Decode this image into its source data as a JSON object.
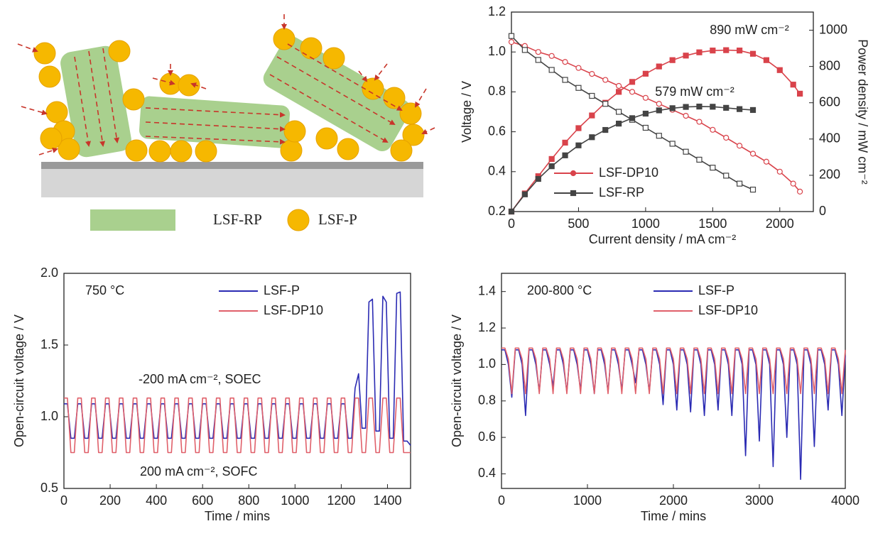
{
  "diagram": {
    "legend": [
      "LSF-RP",
      "LSF-P"
    ]
  },
  "chart_data": [
    {
      "type": "line",
      "x_label": "Current density / mA cm⁻²",
      "y_label": "Voltage / V",
      "y2_label": "Power density / mW cm⁻²",
      "xlim": [
        0,
        2250
      ],
      "xticks": [
        0,
        500,
        1000,
        1500,
        2000
      ],
      "ylim": [
        0.2,
        1.2
      ],
      "yticks": [
        0.2,
        0.4,
        0.6,
        0.8,
        {
          "value": 1,
          "label": "1.0"
        },
        1.2
      ],
      "y2lim": [
        0,
        1100
      ],
      "y2ticks": [
        0,
        200,
        400,
        600,
        800,
        1000
      ],
      "legend": "lower left",
      "annotations": [
        "890 mW cm⁻²",
        "579 mW cm⁻²"
      ],
      "series": [
        {
          "name": "LSF-DP10",
          "color": "#d9434b",
          "marker": "open-circle",
          "x": [
            0,
            100,
            200,
            300,
            400,
            500,
            600,
            700,
            800,
            900,
            1000,
            1100,
            1200,
            1300,
            1400,
            1500,
            1600,
            1700,
            1800,
            1900,
            2000,
            2100,
            2150
          ],
          "values": [
            1.05,
            1.03,
            1.0,
            0.98,
            0.95,
            0.92,
            0.89,
            0.86,
            0.83,
            0.8,
            0.77,
            0.74,
            0.71,
            0.68,
            0.65,
            0.61,
            0.57,
            0.53,
            0.49,
            0.45,
            0.4,
            0.34,
            0.3
          ]
        },
        {
          "color": "#d9434b",
          "marker": "square",
          "axis": "y2",
          "x": [
            0,
            100,
            200,
            300,
            400,
            500,
            600,
            700,
            800,
            900,
            1000,
            1100,
            1200,
            1300,
            1400,
            1500,
            1600,
            1700,
            1800,
            1900,
            2000,
            2100,
            2150
          ],
          "values": [
            0,
            100,
            195,
            290,
            380,
            460,
            530,
            600,
            660,
            715,
            760,
            800,
            835,
            860,
            878,
            888,
            890,
            888,
            870,
            835,
            780,
            700,
            650
          ]
        },
        {
          "name": "LSF-RP",
          "color": "#444444",
          "marker": "open-square",
          "x": [
            0,
            100,
            200,
            300,
            400,
            500,
            600,
            700,
            800,
            900,
            1000,
            1100,
            1200,
            1300,
            1400,
            1500,
            1600,
            1700,
            1800
          ],
          "values": [
            1.08,
            1.01,
            0.96,
            0.91,
            0.86,
            0.82,
            0.78,
            0.74,
            0.7,
            0.66,
            0.62,
            0.58,
            0.54,
            0.5,
            0.46,
            0.42,
            0.38,
            0.34,
            0.31
          ]
        },
        {
          "color": "#444444",
          "marker": "square",
          "axis": "y2",
          "x": [
            0,
            100,
            200,
            300,
            400,
            500,
            600,
            700,
            800,
            900,
            1000,
            1100,
            1200,
            1300,
            1400,
            1500,
            1600,
            1700,
            1800
          ],
          "values": [
            0,
            95,
            180,
            250,
            310,
            365,
            410,
            450,
            485,
            515,
            540,
            558,
            570,
            577,
            579,
            578,
            572,
            565,
            560
          ]
        }
      ]
    },
    {
      "type": "line",
      "x_label": "Time / mins",
      "y_label": "Open-circuit voltage / V",
      "xlim": [
        0,
        1500
      ],
      "xticks": [
        0,
        200,
        400,
        600,
        800,
        1000,
        1200,
        1400
      ],
      "ylim": [
        0.5,
        2.0
      ],
      "yticks": [
        0.5,
        {
          "value": 1,
          "label": "1.0"
        },
        1.5,
        {
          "value": 2,
          "label": "2.0"
        }
      ],
      "legend": "upper right",
      "annotations": [
        "750 °C",
        "-200 mA cm⁻², SOEC",
        "200 mA cm⁻², SOFC"
      ],
      "x": [
        0,
        15,
        30,
        45,
        60,
        75,
        90,
        105,
        120,
        135,
        150,
        165,
        180,
        195,
        210,
        225,
        240,
        255,
        270,
        285,
        300,
        315,
        330,
        345,
        360,
        375,
        390,
        405,
        420,
        435,
        450,
        465,
        480,
        495,
        510,
        525,
        540,
        555,
        570,
        585,
        600,
        615,
        630,
        645,
        660,
        675,
        690,
        705,
        720,
        735,
        750,
        765,
        780,
        795,
        810,
        825,
        840,
        855,
        870,
        885,
        900,
        915,
        930,
        945,
        960,
        975,
        990,
        1005,
        1020,
        1035,
        1050,
        1065,
        1080,
        1095,
        1110,
        1125,
        1140,
        1155,
        1170,
        1185,
        1200,
        1215,
        1230,
        1245,
        1260,
        1275,
        1290,
        1305,
        1320,
        1335,
        1350,
        1365,
        1380,
        1395,
        1410,
        1425,
        1440,
        1455,
        1470,
        1485,
        1500
      ],
      "series": [
        {
          "name": "LSF-P",
          "color": "#2b2bb3",
          "values": [
            1.09,
            1.09,
            0.85,
            0.85,
            1.09,
            1.09,
            0.85,
            0.85,
            1.09,
            1.09,
            0.85,
            0.85,
            1.09,
            1.09,
            0.85,
            0.85,
            1.09,
            1.09,
            0.85,
            0.85,
            1.09,
            1.09,
            0.85,
            0.85,
            1.09,
            1.09,
            0.85,
            0.85,
            1.09,
            1.09,
            0.85,
            0.85,
            1.09,
            1.09,
            0.85,
            0.85,
            1.09,
            1.09,
            0.85,
            0.85,
            1.09,
            1.09,
            0.85,
            0.85,
            1.09,
            1.09,
            0.85,
            0.85,
            1.09,
            1.09,
            0.85,
            0.85,
            1.09,
            1.09,
            0.85,
            0.85,
            1.09,
            1.09,
            0.85,
            0.85,
            1.09,
            1.09,
            0.85,
            0.85,
            1.09,
            1.09,
            0.85,
            0.85,
            1.09,
            1.09,
            0.85,
            0.85,
            1.09,
            1.09,
            0.85,
            0.85,
            1.09,
            1.09,
            0.85,
            0.85,
            1.09,
            1.09,
            0.85,
            0.85,
            1.2,
            1.3,
            0.92,
            0.92,
            1.8,
            1.82,
            0.9,
            0.9,
            1.84,
            1.8,
            0.85,
            0.85,
            1.86,
            1.87,
            0.83,
            0.83,
            0.8
          ]
        },
        {
          "name": "LSF-DP10",
          "color": "#e0606a",
          "values": [
            1.13,
            1.13,
            0.75,
            0.75,
            1.13,
            1.13,
            0.75,
            0.75,
            1.13,
            1.13,
            0.75,
            0.75,
            1.13,
            1.13,
            0.75,
            0.75,
            1.13,
            1.13,
            0.75,
            0.75,
            1.13,
            1.13,
            0.75,
            0.75,
            1.13,
            1.13,
            0.75,
            0.75,
            1.13,
            1.13,
            0.75,
            0.75,
            1.13,
            1.13,
            0.75,
            0.75,
            1.13,
            1.13,
            0.75,
            0.75,
            1.13,
            1.13,
            0.75,
            0.75,
            1.13,
            1.13,
            0.75,
            0.75,
            1.13,
            1.13,
            0.75,
            0.75,
            1.13,
            1.13,
            0.75,
            0.75,
            1.13,
            1.13,
            0.75,
            0.75,
            1.13,
            1.13,
            0.75,
            0.75,
            1.13,
            1.13,
            0.75,
            0.75,
            1.13,
            1.13,
            0.75,
            0.75,
            1.13,
            1.13,
            0.75,
            0.75,
            1.13,
            1.13,
            0.75,
            0.75,
            1.13,
            1.13,
            0.75,
            0.75,
            1.13,
            1.13,
            0.75,
            0.75,
            1.13,
            1.13,
            0.75,
            0.75,
            1.13,
            1.13,
            0.75,
            0.75,
            1.13,
            1.13,
            0.75,
            0.75,
            0.75
          ]
        }
      ]
    },
    {
      "type": "line",
      "x_label": "Time / mins",
      "y_label": "Open-circuit voltage / V",
      "xlim": [
        0,
        4000
      ],
      "xticks": [
        0,
        1000,
        2000,
        3000,
        4000
      ],
      "ylim": [
        0.32,
        1.5
      ],
      "yticks": [
        0.4,
        0.6,
        0.8,
        {
          "value": 1,
          "label": "1.0"
        },
        1.2,
        1.4
      ],
      "legend": "upper right",
      "annotations": [
        "200-800 °C"
      ],
      "x": [
        0,
        40,
        80,
        120,
        160,
        200,
        240,
        280,
        320,
        360,
        400,
        440,
        480,
        520,
        560,
        600,
        640,
        680,
        720,
        760,
        800,
        840,
        880,
        920,
        960,
        1000,
        1040,
        1080,
        1120,
        1160,
        1200,
        1240,
        1280,
        1320,
        1360,
        1400,
        1440,
        1480,
        1520,
        1560,
        1600,
        1640,
        1680,
        1720,
        1760,
        1800,
        1840,
        1880,
        1920,
        1960,
        2000,
        2040,
        2080,
        2120,
        2160,
        2200,
        2240,
        2280,
        2320,
        2360,
        2400,
        2440,
        2480,
        2520,
        2560,
        2600,
        2640,
        2680,
        2720,
        2760,
        2800,
        2840,
        2880,
        2920,
        2960,
        3000,
        3040,
        3080,
        3120,
        3160,
        3200,
        3240,
        3280,
        3320,
        3360,
        3400,
        3440,
        3480,
        3520,
        3560,
        3600,
        3640,
        3680,
        3720,
        3760,
        3800,
        3840,
        3880,
        3920,
        3960,
        4000
      ],
      "series": [
        {
          "name": "LSF-P",
          "color": "#2b2bb3",
          "values": [
            1.08,
            1.08,
            1.0,
            0.82,
            1.08,
            1.08,
            1.0,
            0.72,
            1.08,
            1.08,
            1.0,
            0.85,
            1.08,
            1.08,
            1.0,
            0.88,
            1.08,
            1.08,
            1.0,
            0.85,
            1.08,
            1.08,
            1.0,
            0.86,
            1.08,
            1.08,
            1.0,
            0.84,
            1.08,
            1.08,
            1.0,
            0.85,
            1.08,
            1.08,
            1.0,
            0.86,
            1.08,
            1.08,
            1.0,
            0.9,
            1.08,
            1.08,
            1.0,
            0.85,
            1.08,
            1.08,
            1.0,
            0.78,
            1.08,
            1.08,
            1.0,
            0.75,
            1.08,
            1.08,
            1.0,
            0.74,
            1.08,
            1.08,
            1.0,
            0.72,
            1.08,
            1.08,
            1.0,
            0.75,
            1.08,
            1.08,
            1.0,
            0.72,
            1.08,
            1.08,
            1.0,
            0.5,
            1.08,
            1.08,
            1.0,
            0.58,
            1.08,
            1.08,
            1.0,
            0.44,
            1.08,
            1.08,
            1.0,
            0.6,
            1.08,
            1.08,
            1.0,
            0.37,
            1.08,
            1.08,
            1.0,
            0.55,
            1.08,
            1.08,
            1.0,
            0.75,
            1.08,
            1.08,
            1.0,
            0.72,
            1.05
          ]
        },
        {
          "name": "LSF-DP10",
          "color": "#e0606a",
          "values": [
            1.09,
            1.09,
            1.03,
            0.84,
            1.09,
            1.09,
            1.03,
            0.84,
            1.09,
            1.09,
            1.03,
            0.84,
            1.09,
            1.09,
            1.03,
            0.84,
            1.09,
            1.09,
            1.03,
            0.84,
            1.09,
            1.09,
            1.03,
            0.84,
            1.09,
            1.09,
            1.03,
            0.84,
            1.09,
            1.09,
            1.03,
            0.84,
            1.09,
            1.09,
            1.03,
            0.84,
            1.09,
            1.09,
            1.03,
            0.84,
            1.09,
            1.09,
            1.03,
            0.84,
            1.09,
            1.09,
            1.03,
            0.84,
            1.09,
            1.09,
            1.03,
            0.84,
            1.09,
            1.09,
            1.03,
            0.84,
            1.09,
            1.09,
            1.03,
            0.84,
            1.09,
            1.09,
            1.03,
            0.84,
            1.09,
            1.09,
            1.03,
            0.84,
            1.09,
            1.09,
            1.03,
            0.84,
            1.09,
            1.09,
            1.03,
            0.84,
            1.09,
            1.09,
            1.03,
            0.84,
            1.09,
            1.09,
            1.03,
            0.84,
            1.09,
            1.09,
            1.03,
            0.84,
            1.09,
            1.09,
            1.03,
            0.84,
            1.09,
            1.09,
            1.03,
            0.84,
            1.09,
            1.09,
            1.03,
            0.84,
            1.08
          ]
        }
      ]
    }
  ]
}
